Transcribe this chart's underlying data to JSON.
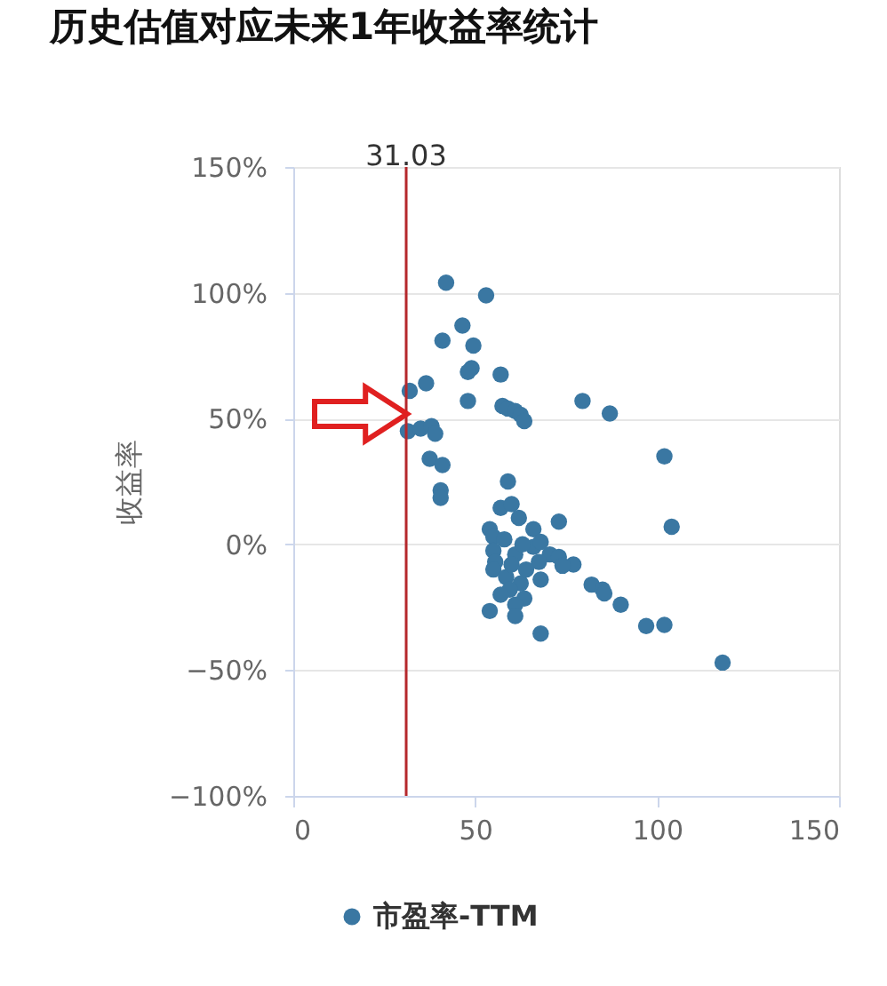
{
  "chart_data": {
    "type": "scatter",
    "title": "历史估值对应未来1年收益率统计",
    "ylabel": "收益率",
    "xlim": [
      0,
      150
    ],
    "xticks": [
      0,
      50,
      100,
      150
    ],
    "ylim": [
      -100,
      150
    ],
    "yticks": [
      {
        "value": -100,
        "label": "−100%"
      },
      {
        "value": -50,
        "label": "−50%"
      },
      {
        "value": 0,
        "label": "0%"
      },
      {
        "value": 50,
        "label": "50%"
      },
      {
        "value": 100,
        "label": "100%"
      },
      {
        "value": 150,
        "label": "150%"
      }
    ],
    "grid": "y",
    "legend": "bottom",
    "marker": "circle",
    "series": [
      {
        "name": "市盈率-TTM",
        "color": "#3a77a2",
        "x": [
          42,
          53,
          46.5,
          41,
          49.5,
          49,
          48,
          57,
          36.5,
          32,
          48,
          57.5,
          59,
          61,
          62.5,
          63.5,
          79.5,
          31.5,
          35,
          38,
          39,
          37.5,
          41,
          40.5,
          40.5,
          59,
          87,
          102,
          104,
          57,
          60,
          62,
          54,
          55,
          66,
          73,
          55,
          55.5,
          55,
          61,
          66,
          68,
          70.5,
          73,
          67.5,
          77,
          74,
          58.5,
          62.5,
          68,
          59.5,
          63.5,
          61,
          54,
          61,
          68,
          82,
          85,
          85.5,
          90,
          97,
          102,
          118,
          58,
          63,
          60,
          64,
          57
        ],
        "values": [
          104,
          99,
          87,
          81,
          79,
          70,
          68.5,
          67.5,
          64,
          61,
          57,
          55,
          54,
          53,
          51.5,
          49,
          57,
          45,
          46,
          47,
          44,
          34,
          31.5,
          21.5,
          18.5,
          25,
          52,
          35,
          7,
          14.5,
          16,
          10.5,
          6,
          3,
          6,
          9,
          -2.5,
          -7,
          -10,
          -4,
          -1,
          1,
          -4,
          -5,
          -7,
          -8,
          -8.5,
          -13,
          -15.5,
          -14,
          -18,
          -21.5,
          -24,
          -26.5,
          -28.5,
          -35.5,
          -16,
          -18,
          -19.5,
          -24,
          -32.5,
          -32,
          -47,
          2,
          0,
          -8,
          -10,
          -20
        ]
      }
    ],
    "ref_lines": [
      {
        "axis": "x",
        "value": 31.03,
        "label": "31.03",
        "color": "#b5282c"
      }
    ]
  }
}
